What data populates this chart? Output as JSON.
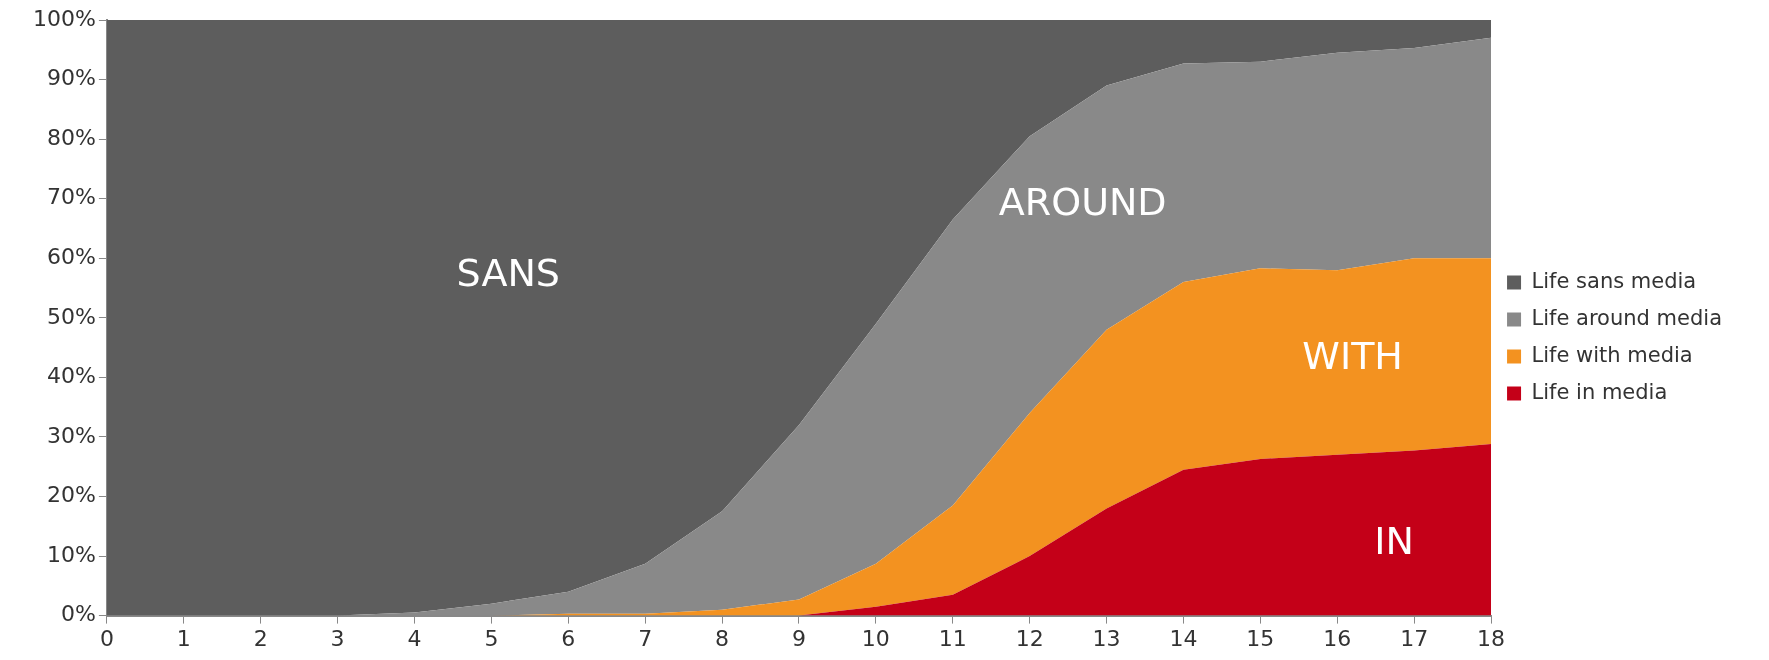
{
  "chart_data": {
    "type": "area",
    "stacked": true,
    "x": [
      0,
      1,
      2,
      3,
      4,
      5,
      6,
      7,
      8,
      9,
      10,
      11,
      12,
      13,
      14,
      15,
      16,
      17,
      18
    ],
    "series": [
      {
        "name": "Life in media",
        "color": "#c40018",
        "values": [
          0,
          0,
          0,
          0,
          0,
          0,
          0,
          0,
          0,
          0,
          1.5,
          3.5,
          10,
          18,
          24.5,
          26.3,
          27,
          27.7,
          28.8
        ]
      },
      {
        "name": "Life with media",
        "color": "#f39220",
        "values": [
          0,
          0,
          0,
          0,
          0,
          0,
          0.3,
          0.3,
          1,
          2.7,
          7.2,
          15,
          24,
          30,
          31.5,
          32,
          31,
          32.3,
          31.2
        ]
      },
      {
        "name": "Life around media",
        "color": "#898989",
        "values": [
          0,
          0,
          0,
          0,
          0.5,
          2,
          3.7,
          8.4,
          16.5,
          29.3,
          40.3,
          48,
          46.5,
          41,
          36.7,
          34.7,
          36.5,
          35.3,
          37
        ]
      },
      {
        "name": "Life sans media",
        "color": "#5d5d5d",
        "values": [
          100,
          100,
          100,
          100,
          99.5,
          98,
          96,
          91.3,
          82.5,
          68,
          51,
          33.5,
          19.5,
          11,
          7.3,
          7,
          5.5,
          4.7,
          3
        ]
      }
    ],
    "xlim": [
      0,
      18
    ],
    "xticks": [
      0,
      1,
      2,
      3,
      4,
      5,
      6,
      7,
      8,
      9,
      10,
      11,
      12,
      13,
      14,
      15,
      16,
      17,
      18
    ],
    "ylim": [
      0,
      100
    ],
    "yticks": [
      {
        "value": 0,
        "label": "0%"
      },
      {
        "value": 10,
        "label": "10%"
      },
      {
        "value": 20,
        "label": "20%"
      },
      {
        "value": 30,
        "label": "30%"
      },
      {
        "value": 40,
        "label": "40%"
      },
      {
        "value": 50,
        "label": "50%"
      },
      {
        "value": 60,
        "label": "60%"
      },
      {
        "value": 70,
        "label": "70%"
      },
      {
        "value": 80,
        "label": "80%"
      },
      {
        "value": 90,
        "label": "90%"
      },
      {
        "value": 100,
        "label": "100%"
      }
    ],
    "grid": false,
    "legend": "right",
    "annotations": [
      "SANS",
      "AROUND",
      "WITH",
      "IN"
    ]
  }
}
